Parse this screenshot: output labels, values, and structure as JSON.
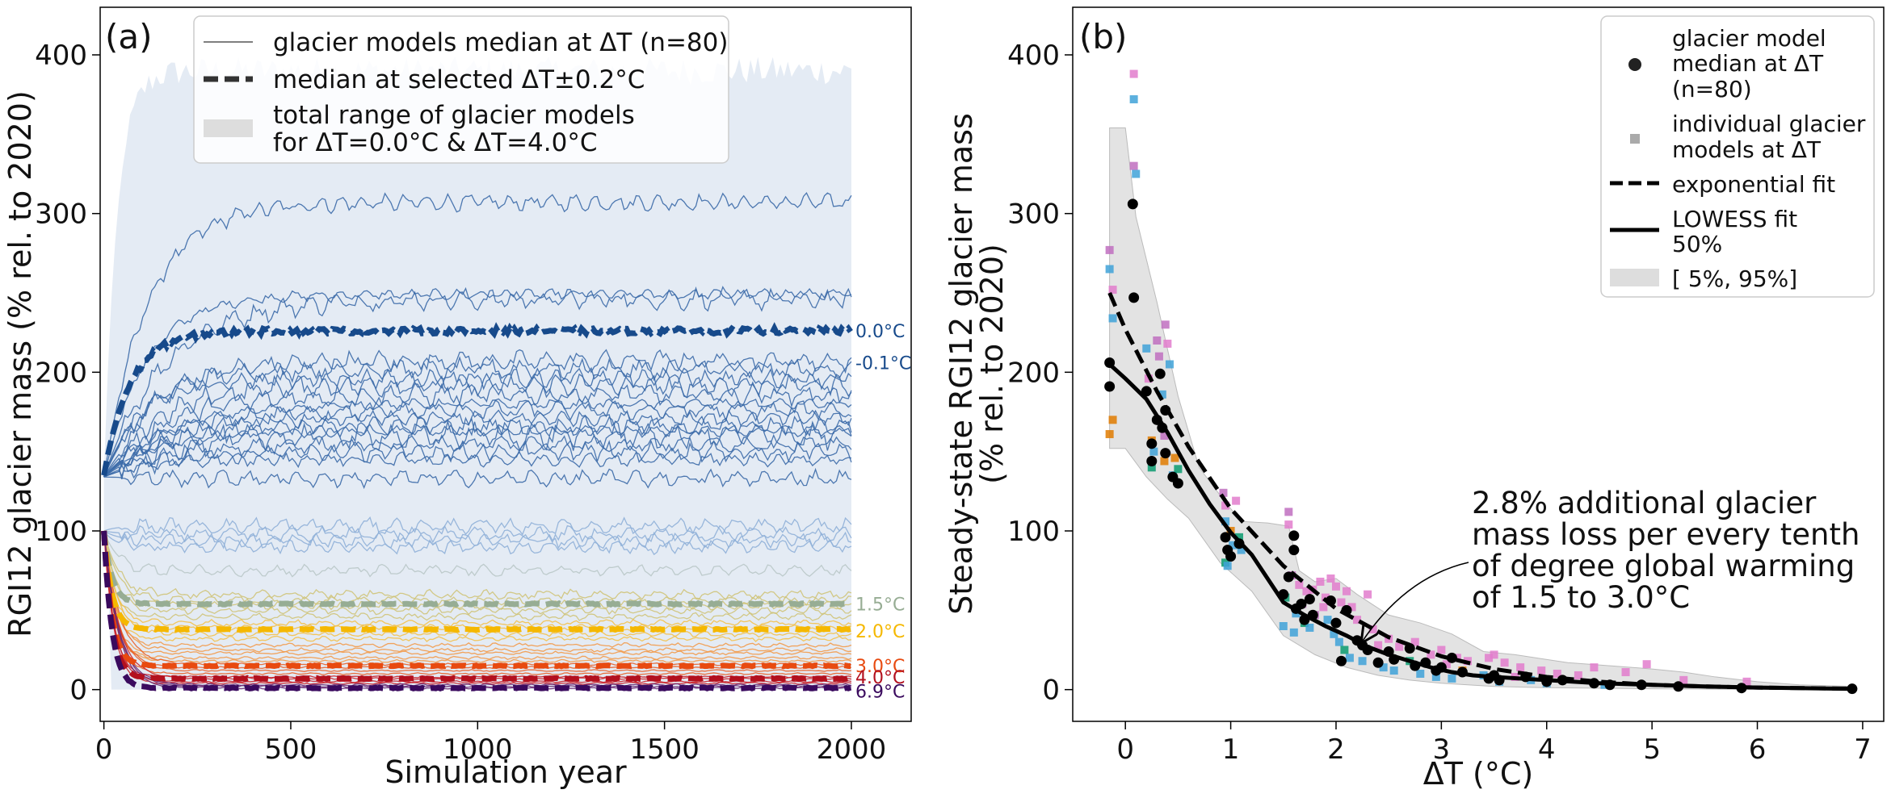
{
  "chart_data": [
    {
      "type": "line",
      "panel_label": "(a)",
      "xlabel": "Simulation year",
      "ylabel": "RGI12 glacier mass (% rel. to 2020)",
      "xlim": [
        -10,
        2160
      ],
      "ylim": [
        -20,
        430
      ],
      "xticks": [
        0,
        500,
        1000,
        1500,
        2000
      ],
      "yticks": [
        0,
        100,
        200,
        300,
        400
      ],
      "legend": {
        "placement": "upper center",
        "entries": [
          {
            "label": "glacier models median at ΔT (n=80)",
            "style": "thin-line"
          },
          {
            "label": "median at selected ΔT±0.2°C",
            "style": "dashed-line"
          },
          {
            "label_line1": "total range of glacier models",
            "label_line2": "for ΔT=0.0°C & ΔT=4.0°C",
            "style": "band"
          }
        ]
      },
      "range_band": {
        "start": 135,
        "plateau_upper": 390,
        "color": "#dbe4f0"
      },
      "thin_series_plateaus": [
        307,
        249,
        246,
        207,
        202,
        196,
        192,
        186,
        180,
        176,
        171,
        166,
        163,
        160,
        155,
        150,
        145,
        133,
        103,
        98,
        94,
        90,
        75,
        60,
        56,
        53,
        50,
        46,
        42,
        39,
        35,
        32,
        28,
        25,
        23,
        20,
        18,
        16,
        14,
        12,
        10,
        8,
        7,
        5,
        4,
        3,
        2,
        1
      ],
      "median_series": [
        {
          "name": "0.0°C",
          "plateau": 226,
          "start": 135,
          "color": "#174a8b"
        },
        {
          "name": "-0.1°C",
          "plateau": null,
          "color": "#174a8b"
        },
        {
          "name": "1.5°C",
          "plateau": 54,
          "start": 100,
          "color": "#97ad94"
        },
        {
          "name": "2.0°C",
          "plateau": 38,
          "start": 100,
          "color": "#f5b800"
        },
        {
          "name": "3.0°C",
          "plateau": 15,
          "start": 100,
          "color": "#e84a10"
        },
        {
          "name": "4.0°C",
          "plateau": 7,
          "start": 100,
          "color": "#b3101e"
        },
        {
          "name": "6.9°C",
          "plateau": 1,
          "start": 100,
          "color": "#3a0a5e"
        }
      ],
      "end_labels": [
        {
          "text": "0.0°C",
          "y": 226,
          "color": "#174a8b"
        },
        {
          "text": "-0.1°C",
          "y": 206,
          "color": "#174a8b"
        },
        {
          "text": "1.5°C",
          "y": 54,
          "color": "#97ad94"
        },
        {
          "text": "2.0°C",
          "y": 37,
          "color": "#f5b800"
        },
        {
          "text": "3.0°C",
          "y": 15,
          "color": "#e84a10"
        },
        {
          "text": "4.0°C",
          "y": 7,
          "color": "#b3101e"
        },
        {
          "text": "6.9°C",
          "y": 1,
          "color": "#3a0a5e"
        }
      ]
    },
    {
      "type": "scatter",
      "panel_label": "(b)",
      "xlabel": "ΔT (°C)",
      "ylabel_line1": "Steady-state RGI12 glacier mass",
      "ylabel_line2": "(% rel. to 2020)",
      "xlim": [
        -0.5,
        7.2
      ],
      "ylim": [
        -20,
        430
      ],
      "xticks": [
        0,
        1,
        2,
        3,
        4,
        5,
        6,
        7
      ],
      "yticks": [
        0,
        100,
        200,
        300,
        400
      ],
      "legend": {
        "placement": "upper right",
        "entries": [
          {
            "label_lines": [
              "glacier model",
              "median at ΔT",
              "(n=80)"
            ],
            "style": "dot"
          },
          {
            "label_lines": [
              "individual glacier",
              "models at ΔT"
            ],
            "style": "square"
          },
          {
            "label_lines": [
              "exponential fit"
            ],
            "style": "dashed-line"
          },
          {
            "label_lines": [
              "LOWESS fit",
              "50%"
            ],
            "style": "line"
          },
          {
            "label_lines": [
              "[ 5%, 95%]"
            ],
            "style": "band"
          }
        ]
      },
      "median_points": [
        [
          -0.15,
          206
        ],
        [
          -0.15,
          191
        ],
        [
          0.07,
          306
        ],
        [
          0.08,
          247
        ],
        [
          0.2,
          188
        ],
        [
          0.25,
          155
        ],
        [
          0.25,
          144
        ],
        [
          0.3,
          170
        ],
        [
          0.33,
          199
        ],
        [
          0.35,
          165
        ],
        [
          0.38,
          149
        ],
        [
          0.38,
          176
        ],
        [
          0.45,
          134
        ],
        [
          0.5,
          130
        ],
        [
          0.95,
          96
        ],
        [
          0.97,
          88
        ],
        [
          1.0,
          84
        ],
        [
          1.08,
          92
        ],
        [
          1.5,
          60
        ],
        [
          1.55,
          71
        ],
        [
          1.6,
          97
        ],
        [
          1.6,
          88
        ],
        [
          1.62,
          51
        ],
        [
          1.67,
          54
        ],
        [
          1.7,
          44
        ],
        [
          1.75,
          57
        ],
        [
          1.78,
          47
        ],
        [
          1.95,
          56
        ],
        [
          2.0,
          42
        ],
        [
          2.05,
          18
        ],
        [
          2.1,
          50
        ],
        [
          2.2,
          31
        ],
        [
          2.25,
          28
        ],
        [
          2.3,
          25
        ],
        [
          2.4,
          17
        ],
        [
          2.5,
          24
        ],
        [
          2.55,
          19
        ],
        [
          2.7,
          26
        ],
        [
          2.75,
          15
        ],
        [
          2.85,
          17
        ],
        [
          2.95,
          12
        ],
        [
          3.0,
          14
        ],
        [
          3.1,
          20
        ],
        [
          3.2,
          11
        ],
        [
          3.45,
          7
        ],
        [
          3.5,
          9
        ],
        [
          3.55,
          6
        ],
        [
          3.8,
          8
        ],
        [
          4.0,
          5
        ],
        [
          4.15,
          6
        ],
        [
          4.45,
          4
        ],
        [
          4.6,
          3
        ],
        [
          4.9,
          3
        ],
        [
          5.25,
          2
        ],
        [
          5.85,
          1
        ],
        [
          6.9,
          0.5
        ]
      ],
      "individual_points": [
        [
          -0.15,
          277,
          "#c06ec0"
        ],
        [
          -0.15,
          265,
          "#3fa2d8"
        ],
        [
          -0.12,
          234,
          "#3fa2d8"
        ],
        [
          -0.12,
          252,
          "#e27ccc"
        ],
        [
          -0.12,
          170,
          "#e07b00"
        ],
        [
          -0.15,
          161,
          "#e07b00"
        ],
        [
          0.08,
          388,
          "#e27ccc"
        ],
        [
          0.08,
          372,
          "#3fa2d8"
        ],
        [
          0.08,
          330,
          "#c06ec0"
        ],
        [
          0.1,
          325,
          "#3fa2d8"
        ],
        [
          0.2,
          215,
          "#3fa2d8"
        ],
        [
          0.22,
          196,
          "#e27ccc"
        ],
        [
          0.25,
          157,
          "#e07b00"
        ],
        [
          0.25,
          140,
          "#0a9b70"
        ],
        [
          0.27,
          150,
          "#3fa2d8"
        ],
        [
          0.3,
          220,
          "#c06ec0"
        ],
        [
          0.32,
          210,
          "#c06ec0"
        ],
        [
          0.35,
          186,
          "#3fa2d8"
        ],
        [
          0.37,
          160,
          "#c06ec0"
        ],
        [
          0.37,
          144,
          "#e07b00"
        ],
        [
          0.38,
          230,
          "#c06ec0"
        ],
        [
          0.4,
          218,
          "#e27ccc"
        ],
        [
          0.42,
          205,
          "#3fa2d8"
        ],
        [
          0.45,
          135,
          "#3fa2d8"
        ],
        [
          0.47,
          146,
          "#e07b00"
        ],
        [
          0.5,
          139,
          "#0a9b70"
        ],
        [
          0.93,
          124,
          "#c06ec0"
        ],
        [
          0.95,
          116,
          "#e27ccc"
        ],
        [
          0.95,
          106,
          "#3fa2d8"
        ],
        [
          0.95,
          80,
          "#0a9b70"
        ],
        [
          0.97,
          78,
          "#3fa2d8"
        ],
        [
          1.0,
          100,
          "#e07b00"
        ],
        [
          1.02,
          91,
          "#3fa2d8"
        ],
        [
          1.05,
          119,
          "#e27ccc"
        ],
        [
          1.08,
          96,
          "#0a9b70"
        ],
        [
          1.1,
          88,
          "#3fa2d8"
        ],
        [
          1.5,
          40,
          "#3fa2d8"
        ],
        [
          1.52,
          58,
          "#0a9b70"
        ],
        [
          1.55,
          112,
          "#c06ec0"
        ],
        [
          1.55,
          104,
          "#e27ccc"
        ],
        [
          1.58,
          72,
          "#c06ec0"
        ],
        [
          1.6,
          36,
          "#3fa2d8"
        ],
        [
          1.62,
          48,
          "#3fa2d8"
        ],
        [
          1.65,
          66,
          "#e27ccc"
        ],
        [
          1.68,
          54,
          "#c06ec0"
        ],
        [
          1.7,
          42,
          "#0a9b70"
        ],
        [
          1.72,
          62,
          "#e27ccc"
        ],
        [
          1.75,
          39,
          "#3fa2d8"
        ],
        [
          1.78,
          63,
          "#e27ccc"
        ],
        [
          1.8,
          47,
          "#c06ec0"
        ],
        [
          1.85,
          68,
          "#e27ccc"
        ],
        [
          1.88,
          52,
          "#e27ccc"
        ],
        [
          1.9,
          58,
          "#e27ccc"
        ],
        [
          1.92,
          44,
          "#3fa2d8"
        ],
        [
          1.95,
          70,
          "#e27ccc"
        ],
        [
          1.98,
          35,
          "#3fa2d8"
        ],
        [
          2.0,
          65,
          "#e27ccc"
        ],
        [
          2.03,
          30,
          "#3fa2d8"
        ],
        [
          2.05,
          55,
          "#e27ccc"
        ],
        [
          2.08,
          25,
          "#0a9b70"
        ],
        [
          2.1,
          62,
          "#e27ccc"
        ],
        [
          2.13,
          20,
          "#3fa2d8"
        ],
        [
          2.15,
          52,
          "#e27ccc"
        ],
        [
          2.2,
          44,
          "#e27ccc"
        ],
        [
          2.25,
          18,
          "#3fa2d8"
        ],
        [
          2.3,
          60,
          "#e27ccc"
        ],
        [
          2.35,
          38,
          "#e27ccc"
        ],
        [
          2.4,
          28,
          "#e27ccc"
        ],
        [
          2.45,
          14,
          "#3fa2d8"
        ],
        [
          2.5,
          32,
          "#e27ccc"
        ],
        [
          2.55,
          12,
          "#3fa2d8"
        ],
        [
          2.6,
          27,
          "#e27ccc"
        ],
        [
          2.7,
          18,
          "#0a9b70"
        ],
        [
          2.75,
          30,
          "#e27ccc"
        ],
        [
          2.8,
          10,
          "#3fa2d8"
        ],
        [
          2.9,
          22,
          "#e27ccc"
        ],
        [
          2.95,
          8,
          "#3fa2d8"
        ],
        [
          3.0,
          25,
          "#e27ccc"
        ],
        [
          3.05,
          16,
          "#e27ccc"
        ],
        [
          3.1,
          7,
          "#3fa2d8"
        ],
        [
          3.15,
          20,
          "#e27ccc"
        ],
        [
          3.2,
          12,
          "#e07b00"
        ],
        [
          3.25,
          18,
          "#e27ccc"
        ],
        [
          3.4,
          9,
          "#3fa2d8"
        ],
        [
          3.45,
          20,
          "#e27ccc"
        ],
        [
          3.5,
          22,
          "#e27ccc"
        ],
        [
          3.55,
          5,
          "#3fa2d8"
        ],
        [
          3.6,
          17,
          "#e27ccc"
        ],
        [
          3.7,
          8,
          "#e27ccc"
        ],
        [
          3.75,
          14,
          "#e27ccc"
        ],
        [
          3.85,
          6,
          "#3fa2d8"
        ],
        [
          3.95,
          12,
          "#e27ccc"
        ],
        [
          4.0,
          4,
          "#3fa2d8"
        ],
        [
          4.1,
          10,
          "#e27ccc"
        ],
        [
          4.3,
          9,
          "#e27ccc"
        ],
        [
          4.45,
          14,
          "#e27ccc"
        ],
        [
          4.55,
          3,
          "#3fa2d8"
        ],
        [
          4.75,
          11,
          "#e27ccc"
        ],
        [
          4.95,
          16,
          "#e27ccc"
        ],
        [
          5.3,
          6,
          "#e27ccc"
        ],
        [
          5.9,
          5,
          "#e27ccc"
        ]
      ],
      "exponential_fit": [
        [
          -0.15,
          250
        ],
        [
          0.0,
          227
        ],
        [
          0.3,
          188
        ],
        [
          0.6,
          153
        ],
        [
          1.0,
          114
        ],
        [
          1.5,
          78
        ],
        [
          2.0,
          51
        ],
        [
          2.5,
          33
        ],
        [
          3.0,
          21
        ],
        [
          3.5,
          13
        ],
        [
          4.0,
          8
        ],
        [
          4.5,
          5
        ],
        [
          5.0,
          3
        ],
        [
          5.5,
          2
        ],
        [
          6.0,
          1.3
        ],
        [
          6.9,
          0.6
        ]
      ],
      "lowess_fit": [
        [
          -0.15,
          205
        ],
        [
          0.0,
          196
        ],
        [
          0.2,
          183
        ],
        [
          0.4,
          162
        ],
        [
          0.6,
          138
        ],
        [
          0.8,
          117
        ],
        [
          1.0,
          99
        ],
        [
          1.2,
          85
        ],
        [
          1.4,
          65
        ],
        [
          1.5,
          55
        ],
        [
          1.7,
          47
        ],
        [
          1.9,
          40
        ],
        [
          2.1,
          34
        ],
        [
          2.3,
          27
        ],
        [
          2.5,
          22
        ],
        [
          2.7,
          18
        ],
        [
          2.9,
          14
        ],
        [
          3.1,
          11
        ],
        [
          3.3,
          9
        ],
        [
          3.5,
          8
        ],
        [
          4.0,
          6
        ],
        [
          4.5,
          4
        ],
        [
          5.0,
          3
        ],
        [
          5.5,
          2
        ],
        [
          6.0,
          1.3
        ],
        [
          6.9,
          0.5
        ]
      ],
      "band_upper": [
        [
          -0.15,
          354
        ],
        [
          0.0,
          354
        ],
        [
          0.1,
          298
        ],
        [
          0.3,
          244
        ],
        [
          0.5,
          185
        ],
        [
          0.7,
          140
        ],
        [
          0.95,
          118
        ],
        [
          1.1,
          106
        ],
        [
          1.35,
          105
        ],
        [
          1.55,
          103
        ],
        [
          1.65,
          75
        ],
        [
          1.8,
          68
        ],
        [
          2.0,
          70
        ],
        [
          2.2,
          60
        ],
        [
          2.5,
          47
        ],
        [
          2.8,
          42
        ],
        [
          3.1,
          35
        ],
        [
          3.4,
          24
        ],
        [
          3.7,
          22
        ],
        [
          4.2,
          17
        ],
        [
          4.6,
          15
        ],
        [
          5.0,
          13
        ],
        [
          5.3,
          11
        ],
        [
          5.6,
          8
        ],
        [
          6.0,
          5
        ],
        [
          6.4,
          3
        ],
        [
          6.9,
          2
        ]
      ],
      "band_lower": [
        [
          -0.15,
          152
        ],
        [
          0.0,
          152
        ],
        [
          0.2,
          134
        ],
        [
          0.4,
          120
        ],
        [
          0.6,
          108
        ],
        [
          0.9,
          80
        ],
        [
          1.2,
          62
        ],
        [
          1.5,
          34
        ],
        [
          1.8,
          22
        ],
        [
          2.1,
          14
        ],
        [
          2.4,
          9
        ],
        [
          2.7,
          6
        ],
        [
          3.0,
          4
        ],
        [
          3.5,
          2
        ],
        [
          4.0,
          1.2
        ],
        [
          5.0,
          0.5
        ],
        [
          6.0,
          0.2
        ],
        [
          6.9,
          0
        ]
      ],
      "annotation": {
        "lines": [
          "2.8% additional glacier",
          "mass loss per every tenth",
          "of degree global warming",
          "of 1.5 to 3.0°C"
        ],
        "arrow_target": [
          2.2,
          28
        ]
      }
    }
  ]
}
